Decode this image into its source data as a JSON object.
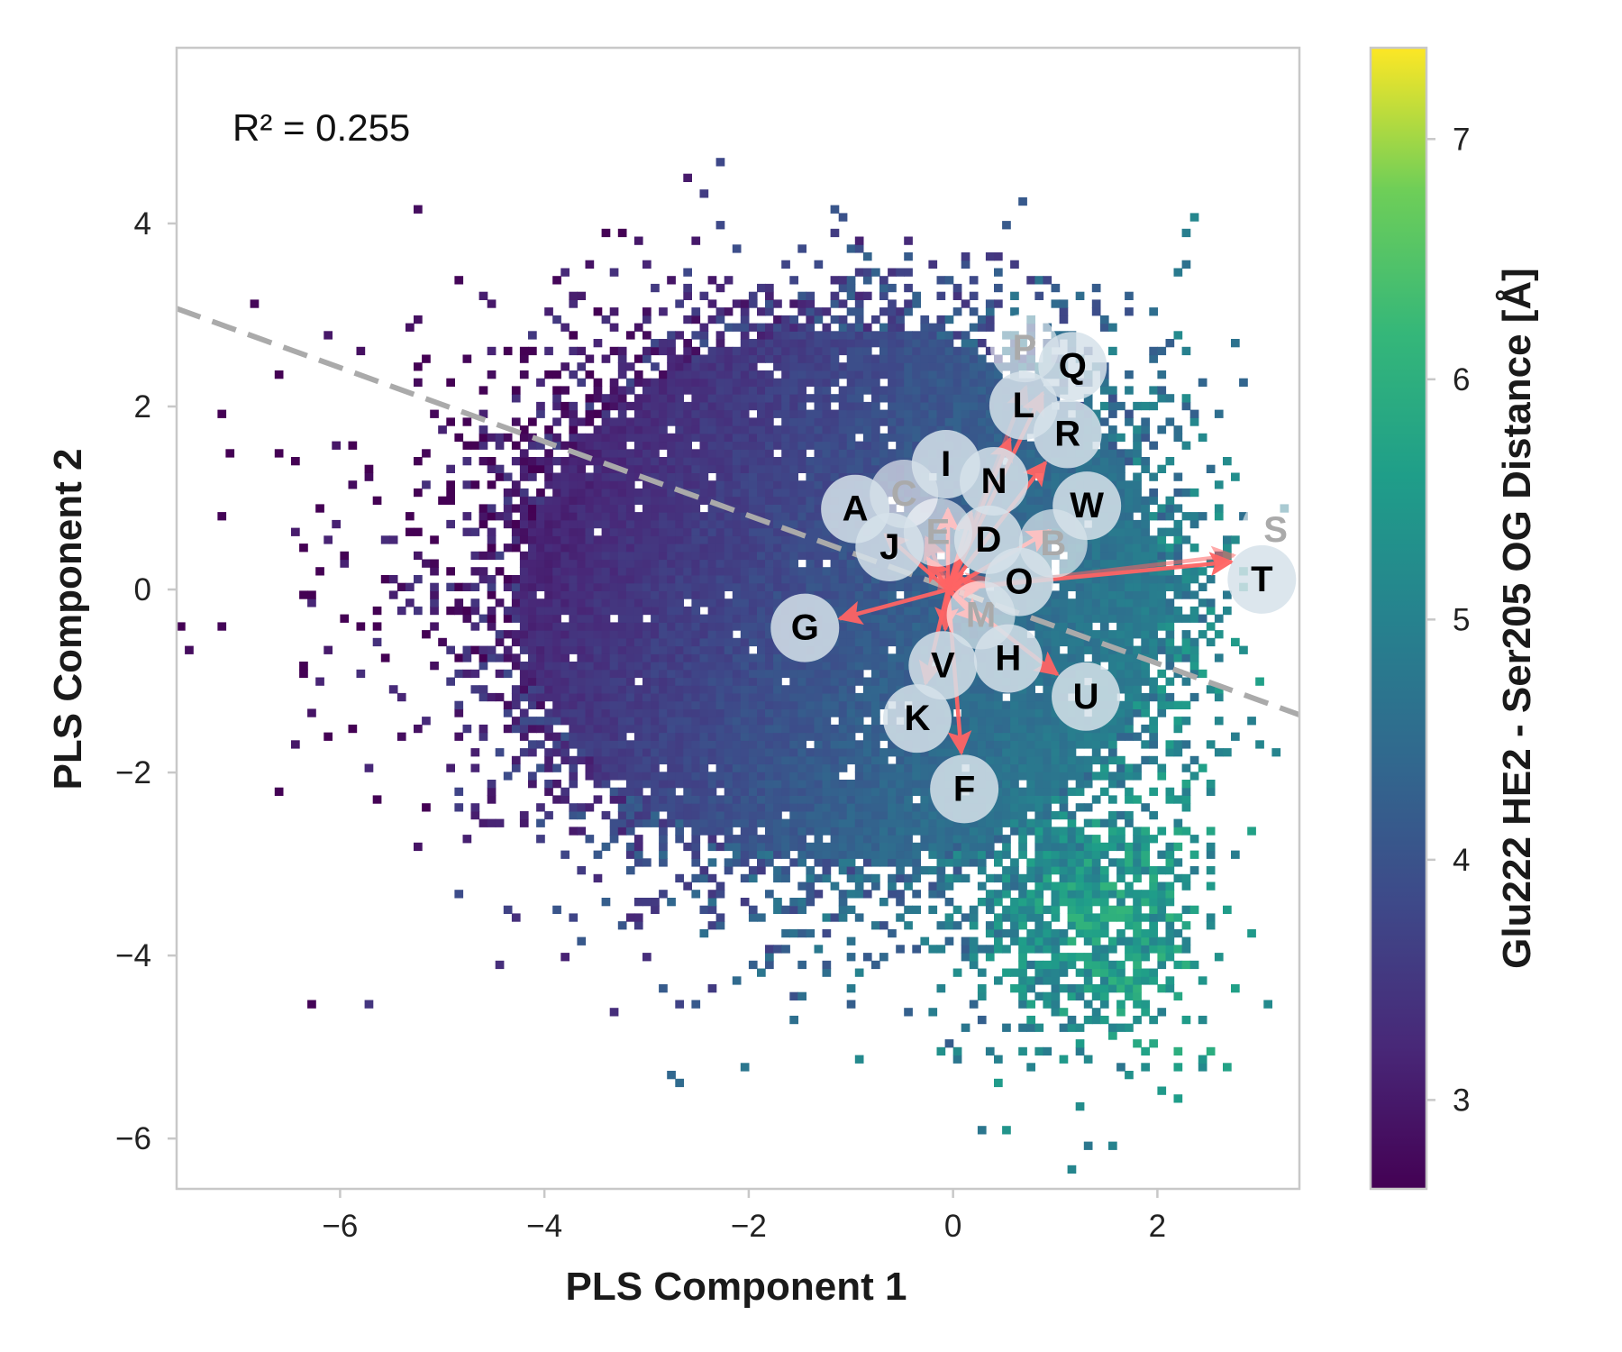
{
  "chart_data": {
    "type": "heatmap",
    "subtype": "2D binned scatter with loading biplot",
    "xlabel": "PLS Component 1",
    "ylabel": "PLS Component 2",
    "xlim": [
      -7.6,
      3.39
    ],
    "ylim": [
      -6.55,
      5.92
    ],
    "x_ticks": [
      {
        "value": -6,
        "label": "−6"
      },
      {
        "value": -4,
        "label": "−4"
      },
      {
        "value": -2,
        "label": "−2"
      },
      {
        "value": 0,
        "label": "0"
      },
      {
        "value": 2,
        "label": "2"
      }
    ],
    "y_ticks": [
      {
        "value": 4,
        "label": "4"
      },
      {
        "value": 2,
        "label": "2"
      },
      {
        "value": 0,
        "label": "0"
      },
      {
        "value": -2,
        "label": "−2"
      },
      {
        "value": -4,
        "label": "−4"
      },
      {
        "value": -6,
        "label": "−6"
      }
    ],
    "annotation": "R² = 0.255",
    "regression_line": {
      "slope": -0.404,
      "intercept": 0.0,
      "style": "dashed",
      "color": "#aaaaaa"
    },
    "colorbar": {
      "label": "Glu222 HE2 - Ser205 OG Distance [Å]",
      "range": [
        2.63,
        7.38
      ],
      "colormap": "viridis",
      "ticks": [
        {
          "value": 7,
          "label": "7"
        },
        {
          "value": 6,
          "label": "6"
        },
        {
          "value": 5,
          "label": "5"
        },
        {
          "value": 4,
          "label": "4"
        },
        {
          "value": 3,
          "label": "3"
        }
      ]
    },
    "loadings": [
      {
        "label": "A",
        "x": -0.93,
        "y": 0.86,
        "faded": false
      },
      {
        "label": "C",
        "x": -0.4,
        "y": 0.93,
        "faded": true
      },
      {
        "label": "J",
        "x": -0.44,
        "y": 0.67,
        "faded": false
      },
      {
        "label": "E",
        "x": -0.23,
        "y": 0.59,
        "faded": true
      },
      {
        "label": "I",
        "x": -0.05,
        "y": 1.27,
        "faded": false
      },
      {
        "label": "N",
        "x": 0.28,
        "y": 1.22,
        "faded": false
      },
      {
        "label": "D",
        "x": 0.32,
        "y": 0.49,
        "faded": false
      },
      {
        "label": "B",
        "x": 0.69,
        "y": 0.22,
        "faded": true
      },
      {
        "label": "M",
        "x": 0.59,
        "y": 0.0,
        "faded": true
      },
      {
        "label": "O",
        "x": 0.64,
        "y": 0.11,
        "faded": false
      },
      {
        "label": "P",
        "x": 0.84,
        "y": 2.58,
        "faded": true
      },
      {
        "label": "Q",
        "x": 1.03,
        "y": 2.5,
        "faded": false
      },
      {
        "label": "L",
        "x": 0.69,
        "y": 2.01,
        "faded": false
      },
      {
        "label": "R",
        "x": 1.12,
        "y": 1.7,
        "faded": false
      },
      {
        "label": "W",
        "x": 1.25,
        "y": 0.84,
        "faded": false
      },
      {
        "label": "S",
        "x": 3.1,
        "y": 0.42,
        "faded": true
      },
      {
        "label": "T",
        "x": 3.08,
        "y": 0.34,
        "faded": false
      },
      {
        "label": "G",
        "x": -1.45,
        "y": -0.42,
        "faded": false
      },
      {
        "label": "H",
        "x": 0.5,
        "y": -0.63,
        "faded": false
      },
      {
        "label": "V",
        "x": -0.1,
        "y": -0.83,
        "faded": false
      },
      {
        "label": "U",
        "x": 1.3,
        "y": -1.17,
        "faded": false
      },
      {
        "label": "K",
        "x": -0.35,
        "y": -1.41,
        "faded": false
      },
      {
        "label": "F",
        "x": 0.11,
        "y": -2.18,
        "faded": false
      }
    ],
    "colors": {
      "arrow": "#ff6464",
      "axis": "#c8c8c8",
      "text": "#1a1a1a"
    }
  }
}
